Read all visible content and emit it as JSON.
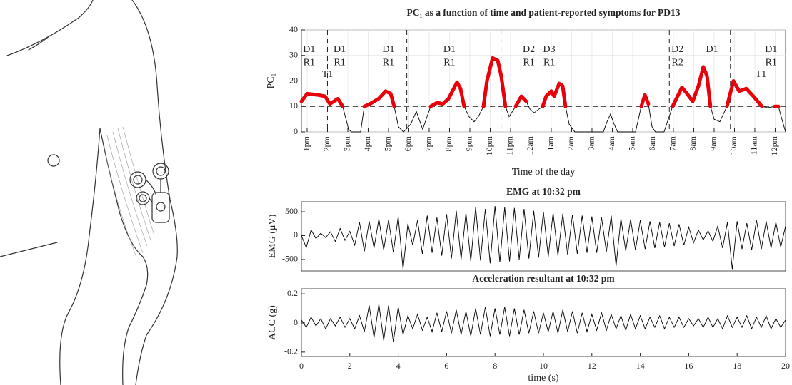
{
  "chart_data": [
    {
      "type": "line",
      "title": "PC₁ as a function of time and patient-reported symptoms for PD13",
      "xlabel": "Time of the day",
      "ylabel": "PC₁",
      "x": [
        12.72,
        13.0,
        13.53,
        13.88,
        14.12,
        14.51,
        14.75,
        15.04,
        15.18,
        15.63,
        15.81,
        16.09,
        16.51,
        16.86,
        17.11,
        17.28,
        17.49,
        17.74,
        18.09,
        18.37,
        18.68,
        19.07,
        19.39,
        19.67,
        19.95,
        20.37,
        20.54,
        20.72,
        20.96,
        21.21,
        21.42,
        21.67,
        21.84,
        22.12,
        22.37,
        22.54,
        22.75,
        22.93,
        23.25,
        23.53,
        23.77,
        23.95,
        24.16,
        24.4,
        24.58,
        24.75,
        25.0,
        25.14,
        25.39,
        25.56,
        25.7,
        25.88,
        26.16,
        27.56,
        27.74,
        27.91,
        28.09,
        28.26,
        29.14,
        29.42,
        29.6,
        29.77,
        29.95,
        30.12,
        30.54,
        30.96,
        31.42,
        31.67,
        31.95,
        32.23,
        32.47,
        32.65,
        32.82,
        33.0,
        33.28,
        33.63,
        33.95,
        34.23,
        34.58,
        34.93,
        35.35,
        35.63,
        35.98,
        36.16,
        36.33,
        36.51
      ],
      "values": [
        12,
        15,
        14.5,
        14,
        11,
        13,
        10,
        1,
        0,
        0,
        10,
        11,
        13,
        16,
        15,
        10,
        2,
        0,
        3,
        8,
        1,
        10,
        11.5,
        11,
        13,
        19.5,
        17,
        10,
        6,
        4,
        6,
        10,
        20,
        29,
        28,
        22,
        10,
        6,
        10,
        14,
        12,
        9,
        7.5,
        9,
        10,
        14,
        16,
        14,
        19,
        18,
        10,
        3,
        0,
        0,
        4,
        7,
        3,
        0,
        0,
        10,
        14.5,
        11,
        2,
        0,
        0,
        10,
        17.5,
        15,
        12,
        18,
        25.5,
        22,
        10,
        5,
        4,
        10,
        20,
        16,
        17,
        14,
        10,
        9.5,
        10,
        10,
        5,
        0
      ],
      "color": "#000000",
      "highlight_color": "#e8000b",
      "threshold": 10,
      "vlines": [
        14,
        17.9,
        22.53,
        30.8,
        33.8
      ],
      "xlim": [
        12.72,
        36.51
      ],
      "ylim": [
        0,
        40
      ],
      "yticks": [
        0,
        10,
        20,
        30,
        40
      ],
      "grid": true,
      "xticks": [
        {
          "value": 13,
          "label": "1pm"
        },
        {
          "value": 14,
          "label": "2pm"
        },
        {
          "value": 15,
          "label": "3pm"
        },
        {
          "value": 16,
          "label": "4pm"
        },
        {
          "value": 17,
          "label": "5pm"
        },
        {
          "value": 18,
          "label": "6pm"
        },
        {
          "value": 19,
          "label": "7pm"
        },
        {
          "value": 20,
          "label": "8pm"
        },
        {
          "value": 21,
          "label": "9pm"
        },
        {
          "value": 22,
          "label": "10pm"
        },
        {
          "value": 23,
          "label": "11pm"
        },
        {
          "value": 24,
          "label": "12am"
        },
        {
          "value": 25,
          "label": "1am"
        },
        {
          "value": 26,
          "label": "2am"
        },
        {
          "value": 27,
          "label": "3am"
        },
        {
          "value": 28,
          "label": "4am"
        },
        {
          "value": 29,
          "label": "5am"
        },
        {
          "value": 30,
          "label": "6am"
        },
        {
          "value": 31,
          "label": "7am"
        },
        {
          "value": 32,
          "label": "8am"
        },
        {
          "value": 33,
          "label": "9am"
        },
        {
          "value": 34,
          "label": "10am"
        },
        {
          "value": 35,
          "label": "11am"
        },
        {
          "value": 36,
          "label": "12pm"
        }
      ],
      "annotations": [
        {
          "x": 13.1,
          "y": 32.2,
          "text": "D1"
        },
        {
          "x": 13.1,
          "y": 27.1,
          "text": "R1"
        },
        {
          "x": 14.0,
          "y": 22.4,
          "text": "T1"
        },
        {
          "x": 14.6,
          "y": 32.2,
          "text": "D1"
        },
        {
          "x": 14.6,
          "y": 27.1,
          "text": "R1"
        },
        {
          "x": 17.0,
          "y": 32.2,
          "text": "D1"
        },
        {
          "x": 17.0,
          "y": 27.1,
          "text": "R1"
        },
        {
          "x": 20.0,
          "y": 32.2,
          "text": "D1"
        },
        {
          "x": 20.0,
          "y": 27.1,
          "text": "R1"
        },
        {
          "x": 23.9,
          "y": 32.2,
          "text": "D2"
        },
        {
          "x": 23.9,
          "y": 27.1,
          "text": "R1"
        },
        {
          "x": 24.9,
          "y": 32.2,
          "text": "D3"
        },
        {
          "x": 24.9,
          "y": 27.1,
          "text": "R1"
        },
        {
          "x": 31.2,
          "y": 32.2,
          "text": "D2"
        },
        {
          "x": 31.2,
          "y": 27.1,
          "text": "R2"
        },
        {
          "x": 32.9,
          "y": 32.2,
          "text": "D1"
        },
        {
          "x": 35.8,
          "y": 32.2,
          "text": "D1"
        },
        {
          "x": 35.8,
          "y": 27.1,
          "text": "R1"
        },
        {
          "x": 35.3,
          "y": 22.4,
          "text": "T1"
        }
      ]
    },
    {
      "type": "line",
      "title": "EMG at 10:32 pm",
      "ylabel": "EMG (μV)",
      "x": [
        0,
        0.2,
        0.4,
        0.6,
        0.8,
        1,
        1.2,
        1.4,
        1.6,
        1.8,
        2,
        2.2,
        2.4,
        2.6,
        2.8,
        3,
        3.2,
        3.4,
        3.6,
        3.8,
        4,
        4.2,
        4.4,
        4.6,
        4.8,
        5,
        5.2,
        5.4,
        5.6,
        5.8,
        6,
        6.2,
        6.4,
        6.6,
        6.8,
        7,
        7.2,
        7.4,
        7.6,
        7.8,
        8,
        8.2,
        8.4,
        8.6,
        8.8,
        9,
        9.2,
        9.4,
        9.6,
        9.8,
        10,
        10.2,
        10.4,
        10.6,
        10.8,
        11,
        11.2,
        11.4,
        11.6,
        11.8,
        12,
        12.2,
        12.4,
        12.6,
        12.8,
        13,
        13.2,
        13.4,
        13.6,
        13.8,
        14,
        14.2,
        14.4,
        14.6,
        14.8,
        15,
        15.2,
        15.4,
        15.6,
        15.8,
        16,
        16.2,
        16.4,
        16.6,
        16.8,
        17,
        17.2,
        17.4,
        17.6,
        17.8,
        18,
        18.2,
        18.4,
        18.6,
        18.8,
        19,
        19.2,
        19.4,
        19.6,
        19.8,
        20
      ],
      "values": [
        0,
        -250,
        120,
        -60,
        50,
        -40,
        80,
        -120,
        150,
        -100,
        90,
        -200,
        280,
        -330,
        300,
        -260,
        350,
        -300,
        330,
        -350,
        400,
        -700,
        250,
        -200,
        320,
        -380,
        420,
        -360,
        380,
        -420,
        450,
        -480,
        520,
        -500,
        480,
        -540,
        600,
        -520,
        560,
        -580,
        620,
        -560,
        600,
        -540,
        580,
        -500,
        560,
        -480,
        520,
        -460,
        500,
        -440,
        480,
        -420,
        460,
        -400,
        440,
        -380,
        420,
        -360,
        400,
        -360,
        380,
        -340,
        420,
        -640,
        360,
        -320,
        340,
        -300,
        320,
        -280,
        300,
        -260,
        280,
        -240,
        260,
        -220,
        240,
        -200,
        180,
        -150,
        120,
        -90,
        100,
        -120,
        200,
        -260,
        280,
        -700,
        300,
        -280,
        260,
        -300,
        320,
        -280,
        300,
        -260,
        280,
        -240,
        200
      ],
      "color": "#000000",
      "xlim": [
        0,
        20
      ],
      "ylim": [
        -740,
        710
      ],
      "yticks": [
        -500,
        0,
        500
      ],
      "grid": false
    },
    {
      "type": "line",
      "title": "Acceleration resultant at 10:32 pm",
      "xlabel": "time (s)",
      "ylabel": "ACC (g)",
      "x": [
        0,
        0.2,
        0.4,
        0.6,
        0.8,
        1,
        1.2,
        1.4,
        1.6,
        1.8,
        2,
        2.2,
        2.4,
        2.6,
        2.8,
        3,
        3.2,
        3.4,
        3.6,
        3.8,
        4,
        4.2,
        4.4,
        4.6,
        4.8,
        5,
        5.2,
        5.4,
        5.6,
        5.8,
        6,
        6.2,
        6.4,
        6.6,
        6.8,
        7,
        7.2,
        7.4,
        7.6,
        7.8,
        8,
        8.2,
        8.4,
        8.6,
        8.8,
        9,
        9.2,
        9.4,
        9.6,
        9.8,
        10,
        10.2,
        10.4,
        10.6,
        10.8,
        11,
        11.2,
        11.4,
        11.6,
        11.8,
        12,
        12.2,
        12.4,
        12.6,
        12.8,
        13,
        13.2,
        13.4,
        13.6,
        13.8,
        14,
        14.2,
        14.4,
        14.6,
        14.8,
        15,
        15.2,
        15.4,
        15.6,
        15.8,
        16,
        16.2,
        16.4,
        16.6,
        16.8,
        17,
        17.2,
        17.4,
        17.6,
        17.8,
        18,
        18.2,
        18.4,
        18.6,
        18.8,
        19,
        19.2,
        19.4,
        19.6,
        19.8,
        20
      ],
      "values": [
        0.02,
        -0.03,
        0.04,
        -0.02,
        0.03,
        -0.04,
        0.03,
        -0.02,
        0.04,
        -0.03,
        0.03,
        -0.04,
        0.05,
        -0.06,
        0.12,
        -0.1,
        0.13,
        -0.12,
        0.12,
        -0.13,
        0.11,
        -0.08,
        0.05,
        -0.04,
        0.06,
        -0.05,
        0.04,
        -0.06,
        0.07,
        -0.06,
        0.08,
        -0.07,
        0.09,
        -0.08,
        0.08,
        -0.09,
        0.1,
        -0.08,
        0.11,
        -0.09,
        0.1,
        -0.08,
        0.11,
        -0.09,
        0.1,
        -0.08,
        0.09,
        -0.07,
        0.08,
        -0.07,
        0.07,
        -0.06,
        0.08,
        -0.07,
        0.09,
        -0.06,
        0.08,
        -0.07,
        0.07,
        -0.06,
        0.06,
        -0.05,
        0.07,
        -0.05,
        0.06,
        -0.04,
        0.05,
        -0.05,
        0.06,
        -0.04,
        0.05,
        -0.04,
        0.04,
        -0.03,
        0.05,
        -0.04,
        0.04,
        -0.03,
        0.04,
        -0.03,
        0.03,
        -0.02,
        0.03,
        -0.03,
        0.04,
        -0.03,
        0.03,
        -0.04,
        0.05,
        -0.03,
        0.04,
        -0.03,
        0.05,
        -0.04,
        0.04,
        -0.03,
        0.05,
        -0.04,
        0.03,
        -0.03,
        0.02
      ],
      "color": "#000000",
      "xlim": [
        0,
        20
      ],
      "ylim": [
        -0.23,
        0.235
      ],
      "yticks": [
        -0.2,
        0,
        0.2
      ],
      "xticks": [
        0,
        2,
        4,
        6,
        8,
        10,
        12,
        14,
        16,
        18,
        20
      ],
      "grid": false
    }
  ]
}
